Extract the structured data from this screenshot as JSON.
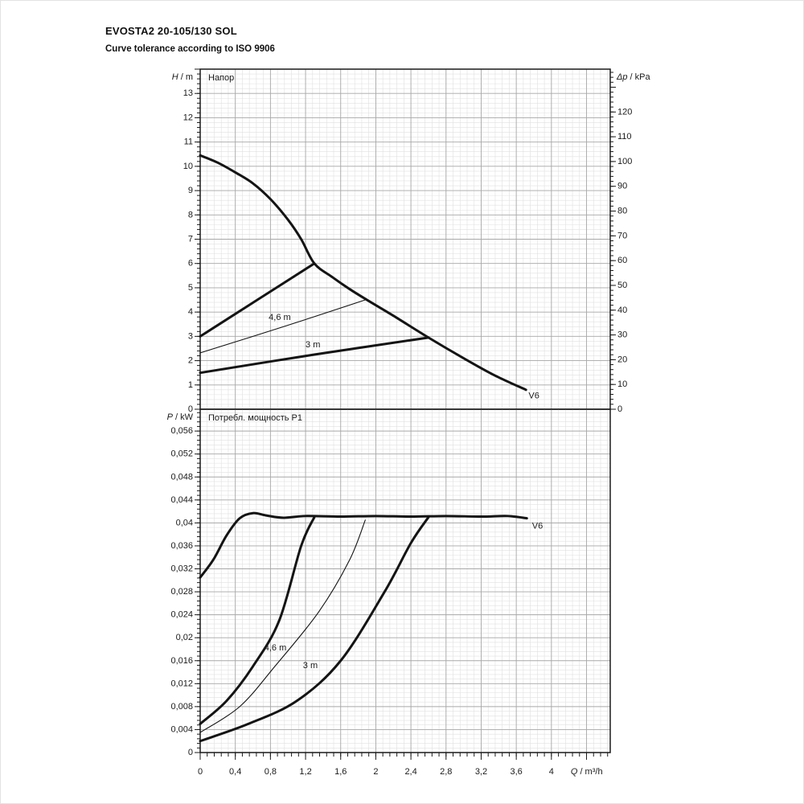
{
  "header": {
    "title": "EVOSTA2 20-105/130 SOL",
    "subtitle": "Curve tolerance according to ISO 9906"
  },
  "colors": {
    "curve": "#141414",
    "grid_minor": "#e0e0e0",
    "grid_major": "#a8a8a8",
    "frame": "#1a1a1a",
    "text": "#1a1a1a"
  },
  "chart_data": [
    {
      "id": "head",
      "type": "line",
      "title": "Напор",
      "ylabel": "H / m",
      "ylabel_right": "Δp / kPa",
      "xlim": [
        0,
        4.67
      ],
      "ylim": [
        0,
        14
      ],
      "ylim_right": [
        0,
        137
      ],
      "right_unit_per_left": 9.80665,
      "grid": {
        "x_major": 0.4,
        "x_minor": 0.08,
        "y_major": 1,
        "y_minor": 0.2,
        "y_right_major": 10,
        "y_right_minor": 2
      },
      "y_ticks": [
        {
          "v": 13,
          "label": "13"
        },
        {
          "v": 12,
          "label": "12"
        },
        {
          "v": 11,
          "label": "11"
        },
        {
          "v": 10,
          "label": "10"
        },
        {
          "v": 9,
          "label": "9"
        },
        {
          "v": 8,
          "label": "8"
        },
        {
          "v": 7,
          "label": "7"
        },
        {
          "v": 6,
          "label": "6"
        },
        {
          "v": 5,
          "label": "5"
        },
        {
          "v": 4,
          "label": "4"
        },
        {
          "v": 3,
          "label": "3"
        },
        {
          "v": 2,
          "label": "2"
        },
        {
          "v": 1,
          "label": "1"
        },
        {
          "v": 0,
          "label": "0"
        }
      ],
      "y_ticks_right": [
        {
          "v": 120,
          "label": "120"
        },
        {
          "v": 110,
          "label": "110"
        },
        {
          "v": 100,
          "label": "100"
        },
        {
          "v": 90,
          "label": "90"
        },
        {
          "v": 80,
          "label": "80"
        },
        {
          "v": 70,
          "label": "70"
        },
        {
          "v": 60,
          "label": "60"
        },
        {
          "v": 50,
          "label": "50"
        },
        {
          "v": 40,
          "label": "40"
        },
        {
          "v": 30,
          "label": "30"
        },
        {
          "v": 20,
          "label": "20"
        },
        {
          "v": 10,
          "label": "10"
        },
        {
          "v": 0,
          "label": "0"
        }
      ],
      "series": [
        {
          "name": "max-speed-curve",
          "label": "V6",
          "label_pos": [
            3.74,
            0.45
          ],
          "width": 3,
          "points": [
            [
              0,
              10.45
            ],
            [
              0.2,
              10.15
            ],
            [
              0.4,
              9.75
            ],
            [
              0.6,
              9.3
            ],
            [
              0.8,
              8.65
            ],
            [
              1.0,
              7.8
            ],
            [
              1.15,
              7.0
            ],
            [
              1.3,
              6.0
            ],
            [
              1.5,
              5.45
            ],
            [
              1.7,
              4.95
            ],
            [
              1.9,
              4.5
            ],
            [
              2.2,
              3.85
            ],
            [
              2.6,
              2.95
            ],
            [
              3.0,
              2.1
            ],
            [
              3.35,
              1.4
            ],
            [
              3.71,
              0.8
            ]
          ]
        },
        {
          "name": "setting-max",
          "label": "",
          "width": 3,
          "points": [
            [
              0,
              3.0
            ],
            [
              0.65,
              4.5
            ],
            [
              1.3,
              6.0
            ]
          ]
        },
        {
          "name": "setting-4-6m",
          "label": "4,6 m",
          "label_pos": [
            0.78,
            3.68
          ],
          "width": 1.1,
          "points": [
            [
              0,
              2.32
            ],
            [
              0.95,
              3.4
            ],
            [
              1.88,
              4.5
            ]
          ]
        },
        {
          "name": "setting-3m",
          "label": "3 m",
          "label_pos": [
            1.2,
            2.55
          ],
          "width": 3,
          "points": [
            [
              0,
              1.5
            ],
            [
              1.3,
              2.25
            ],
            [
              2.6,
              2.95
            ]
          ]
        }
      ]
    },
    {
      "id": "power",
      "type": "line",
      "title": "Потребл. мощность P1",
      "ylabel": "P / kW",
      "xlabel": "Q / m³/h",
      "xlim": [
        0,
        4.67
      ],
      "ylim": [
        0,
        0.0598
      ],
      "grid": {
        "x_major": 0.4,
        "x_minor": 0.08,
        "y_major": 0.004,
        "y_minor": 0.0008
      },
      "y_ticks": [
        {
          "v": 0.056,
          "label": "0,056"
        },
        {
          "v": 0.052,
          "label": "0,052"
        },
        {
          "v": 0.048,
          "label": "0,048"
        },
        {
          "v": 0.044,
          "label": "0,044"
        },
        {
          "v": 0.04,
          "label": "0,04"
        },
        {
          "v": 0.036,
          "label": "0,036"
        },
        {
          "v": 0.032,
          "label": "0,032"
        },
        {
          "v": 0.028,
          "label": "0,028"
        },
        {
          "v": 0.024,
          "label": "0,024"
        },
        {
          "v": 0.02,
          "label": "0,02"
        },
        {
          "v": 0.016,
          "label": "0,016"
        },
        {
          "v": 0.012,
          "label": "0,012"
        },
        {
          "v": 0.008,
          "label": "0,008"
        },
        {
          "v": 0.004,
          "label": "0,004"
        },
        {
          "v": 0,
          "label": "0"
        }
      ],
      "x_ticks": [
        {
          "v": 0,
          "label": "0"
        },
        {
          "v": 0.4,
          "label": "0,4"
        },
        {
          "v": 0.8,
          "label": "0,8"
        },
        {
          "v": 1.2,
          "label": "1,2"
        },
        {
          "v": 1.6,
          "label": "1,6"
        },
        {
          "v": 2,
          "label": "2"
        },
        {
          "v": 2.4,
          "label": "2,4"
        },
        {
          "v": 2.8,
          "label": "2,8"
        },
        {
          "v": 3.2,
          "label": "3,2"
        },
        {
          "v": 3.6,
          "label": "3,6"
        },
        {
          "v": 4,
          "label": "4"
        }
      ],
      "series": [
        {
          "name": "max-speed-power",
          "label": "V6",
          "label_pos": [
            3.78,
            0.039
          ],
          "width": 3,
          "points": [
            [
              0,
              0.0305
            ],
            [
              0.15,
              0.0336
            ],
            [
              0.3,
              0.0378
            ],
            [
              0.45,
              0.0408
            ],
            [
              0.6,
              0.0417
            ],
            [
              0.75,
              0.0413
            ],
            [
              0.95,
              0.0409
            ],
            [
              1.2,
              0.0412
            ],
            [
              1.6,
              0.0411
            ],
            [
              2.0,
              0.0412
            ],
            [
              2.4,
              0.0411
            ],
            [
              2.8,
              0.0412
            ],
            [
              3.2,
              0.0411
            ],
            [
              3.5,
              0.0412
            ],
            [
              3.72,
              0.0408
            ]
          ]
        },
        {
          "name": "setting-max-power",
          "label": "",
          "width": 3,
          "points": [
            [
              0,
              0.005
            ],
            [
              0.3,
              0.009
            ],
            [
              0.6,
              0.015
            ],
            [
              0.9,
              0.023
            ],
            [
              1.15,
              0.036
            ],
            [
              1.3,
              0.041
            ]
          ]
        },
        {
          "name": "setting-4-6m-power",
          "label": "4,6 m",
          "label_pos": [
            0.73,
            0.0178
          ],
          "width": 1.1,
          "points": [
            [
              0,
              0.0035
            ],
            [
              0.45,
              0.008
            ],
            [
              0.85,
              0.015
            ],
            [
              1.35,
              0.0245
            ],
            [
              1.7,
              0.0335
            ],
            [
              1.88,
              0.0405
            ]
          ]
        },
        {
          "name": "setting-3m-power",
          "label": "3 m",
          "label_pos": [
            1.17,
            0.0147
          ],
          "width": 3,
          "points": [
            [
              0,
              0.002
            ],
            [
              0.55,
              0.005
            ],
            [
              1.1,
              0.009
            ],
            [
              1.6,
              0.016
            ],
            [
              2.1,
              0.028
            ],
            [
              2.4,
              0.0365
            ],
            [
              2.6,
              0.041
            ]
          ]
        }
      ]
    }
  ]
}
